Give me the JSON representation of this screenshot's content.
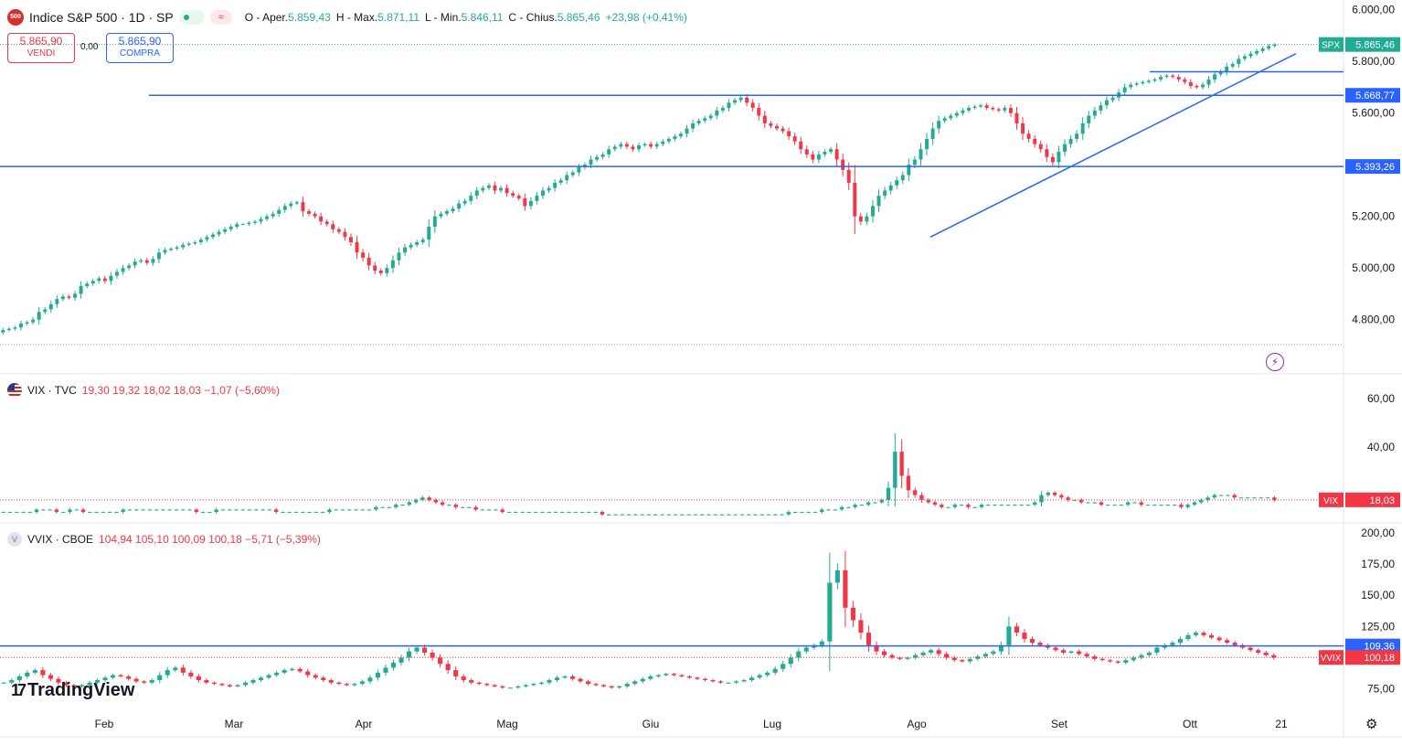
{
  "main": {
    "symbol_logo": "500",
    "title": "Indice S&P 500 · 1D · SP",
    "ohlc": {
      "o_label": "O",
      "o_prefix": "Aper.",
      "o": "5.859,43",
      "h_label": "H",
      "h_prefix": "Max.",
      "h": "5.871,11",
      "l_label": "L",
      "l_prefix": "Min.",
      "l": "5.846,11",
      "c_label": "C",
      "c_prefix": "Chius.",
      "c": "5.865,46",
      "chg": "+23,98 (+0,41%)"
    },
    "sell_price": "5.865,90",
    "sell_label": "VENDI",
    "spread": "0,00",
    "buy_price": "5.865,90",
    "buy_label": "COMPRA"
  },
  "vix": {
    "title": "VIX · TVC",
    "values": "19,30  19,32  18,02  18,03  −1,07 (−5,60%)"
  },
  "vvix": {
    "logo": "V",
    "title": "VVIX · CBOE",
    "values": "104,94  105,10  100,09  100,18  −5,71 (−5,39%)"
  },
  "branding": "TradingView",
  "colors": {
    "up": "#22ab94",
    "down": "#f23645",
    "line": "#2962ff",
    "text": "#131722"
  },
  "icons": [
    "tradingview-logo-icon",
    "settings-gear-icon",
    "lightning-icon",
    "us-flag-icon"
  ],
  "chart_data": [
    {
      "type": "candlestick",
      "name": "SPX",
      "x_ticks": [
        "Feb",
        "Mar",
        "Apr",
        "Mag",
        "Giu",
        "Lug",
        "Ago",
        "Set",
        "Ott",
        "21"
      ],
      "y_ticks": [
        "6.000,00",
        "5.800,00",
        "5.600,00",
        "5.200,00",
        "5.000,00",
        "4.800,00"
      ],
      "ylim": [
        4700,
        6020
      ],
      "last_price_tag": {
        "symbol": "SPX",
        "value": "5.865,46"
      },
      "horizontal_lines": [
        {
          "value": 5668.77,
          "label": "5.668,77"
        },
        {
          "value": 5393.26,
          "label": "5.393,26"
        },
        {
          "value": 5760
        }
      ],
      "trendline": [
        {
          "date": "2024-08-05",
          "value": 5120
        },
        {
          "date": "2024-10-18",
          "value": 5830
        }
      ],
      "closes": [
        4760,
        4765,
        4770,
        4785,
        4790,
        4800,
        4830,
        4840,
        4860,
        4880,
        4890,
        4885,
        4900,
        4930,
        4940,
        4950,
        4960,
        4950,
        4970,
        4985,
        5000,
        5010,
        5025,
        5030,
        5020,
        5035,
        5060,
        5070,
        5075,
        5080,
        5090,
        5095,
        5100,
        5110,
        5120,
        5130,
        5140,
        5150,
        5160,
        5170,
        5170,
        5175,
        5180,
        5190,
        5200,
        5210,
        5225,
        5240,
        5250,
        5255,
        5220,
        5210,
        5200,
        5180,
        5170,
        5150,
        5140,
        5120,
        5100,
        5060,
        5040,
        5010,
        4990,
        4980,
        5000,
        5030,
        5060,
        5080,
        5090,
        5100,
        5110,
        5160,
        5200,
        5210,
        5220,
        5230,
        5250,
        5260,
        5280,
        5300,
        5310,
        5320,
        5300,
        5310,
        5290,
        5280,
        5270,
        5240,
        5260,
        5280,
        5300,
        5310,
        5330,
        5340,
        5360,
        5370,
        5390,
        5400,
        5420,
        5430,
        5440,
        5460,
        5470,
        5480,
        5470,
        5460,
        5475,
        5480,
        5470,
        5480,
        5490,
        5500,
        5510,
        5520,
        5540,
        5560,
        5570,
        5580,
        5590,
        5610,
        5620,
        5640,
        5650,
        5660,
        5640,
        5620,
        5590,
        5560,
        5550,
        5540,
        5530,
        5510,
        5490,
        5460,
        5440,
        5420,
        5440,
        5450,
        5460,
        5420,
        5380,
        5330,
        5200,
        5180,
        5200,
        5240,
        5280,
        5300,
        5320,
        5340,
        5360,
        5400,
        5420,
        5460,
        5500,
        5540,
        5570,
        5580,
        5590,
        5600,
        5610,
        5620,
        5625,
        5630,
        5620,
        5615,
        5610,
        5620,
        5600,
        5560,
        5520,
        5500,
        5480,
        5460,
        5430,
        5410,
        5450,
        5480,
        5500,
        5520,
        5560,
        5590,
        5610,
        5630,
        5650,
        5660,
        5680,
        5700,
        5710,
        5715,
        5720,
        5725,
        5730,
        5740,
        5745,
        5740,
        5730,
        5720,
        5705,
        5700,
        5710,
        5730,
        5750,
        5760,
        5780,
        5790,
        5810,
        5820,
        5830,
        5840,
        5850,
        5860,
        5865
      ]
    },
    {
      "type": "candlestick",
      "name": "VIX",
      "y_ticks": [
        "60,00",
        "40,00"
      ],
      "ylim": [
        10,
        68
      ],
      "last_price_tag": {
        "symbol": "VIX",
        "value": "18,03"
      },
      "closes": [
        13,
        13,
        13,
        13,
        13,
        14,
        14,
        14,
        13,
        13,
        14,
        14,
        13,
        13,
        13,
        13,
        13,
        13,
        14,
        14,
        14,
        14,
        14,
        14,
        14,
        14,
        14,
        14,
        14,
        13,
        13,
        13,
        14,
        14,
        14,
        14,
        14,
        14,
        14,
        14,
        14,
        13,
        13,
        13,
        13,
        13,
        13,
        13,
        13,
        14,
        14,
        14,
        14,
        14,
        14,
        14,
        15,
        15,
        15,
        16,
        16,
        17,
        18,
        19,
        18,
        17,
        16,
        16,
        15,
        15,
        15,
        14,
        14,
        14,
        14,
        13,
        13,
        13,
        13,
        13,
        13,
        13,
        13,
        13,
        13,
        13,
        13,
        13,
        13,
        13,
        12,
        12,
        12,
        12,
        12,
        12,
        12,
        12,
        12,
        12,
        12,
        12,
        12,
        12,
        12,
        12,
        12,
        12,
        12,
        12,
        12,
        12,
        12,
        12,
        12,
        12,
        12,
        12,
        13,
        13,
        13,
        13,
        13,
        14,
        14,
        14,
        15,
        15,
        16,
        16,
        17,
        17,
        18,
        23,
        38,
        28,
        22,
        20,
        18,
        17,
        16,
        15,
        15,
        16,
        16,
        15,
        15,
        16,
        16,
        16,
        16,
        16,
        16,
        16,
        16,
        17,
        20,
        21,
        20,
        19,
        18,
        18,
        17,
        17,
        17,
        16,
        16,
        16,
        16,
        17,
        17,
        16,
        16,
        16,
        16,
        16,
        16,
        15,
        16,
        17,
        18,
        19,
        20,
        20,
        20,
        19,
        19,
        19,
        19,
        19,
        19,
        18
      ]
    },
    {
      "type": "candlestick",
      "name": "VVIX",
      "y_ticks": [
        "200,00",
        "175,00",
        "150,00",
        "125,00",
        "100,00",
        "75,00"
      ],
      "ylim": [
        63,
        205
      ],
      "last_price_tag": {
        "symbol": "VVIX",
        "value": "100,18"
      },
      "horizontal_lines": [
        {
          "value": 109.36,
          "label": "109,36"
        }
      ],
      "closes": [
        80,
        82,
        85,
        88,
        90,
        86,
        83,
        80,
        78,
        77,
        78,
        80,
        82,
        84,
        86,
        85,
        83,
        81,
        80,
        82,
        86,
        90,
        92,
        88,
        85,
        82,
        80,
        79,
        78,
        77,
        78,
        80,
        82,
        84,
        86,
        88,
        90,
        91,
        89,
        86,
        84,
        82,
        80,
        79,
        78,
        79,
        81,
        84,
        88,
        92,
        96,
        100,
        105,
        108,
        104,
        100,
        95,
        90,
        85,
        82,
        80,
        79,
        78,
        77,
        76,
        76,
        77,
        78,
        79,
        80,
        82,
        84,
        85,
        83,
        81,
        79,
        78,
        77,
        76,
        77,
        79,
        81,
        83,
        85,
        86,
        87,
        86,
        85,
        84,
        83,
        82,
        81,
        80,
        80,
        81,
        82,
        84,
        86,
        88,
        91,
        95,
        100,
        105,
        108,
        110,
        113,
        160,
        170,
        140,
        130,
        120,
        110,
        105,
        102,
        100,
        99,
        100,
        102,
        104,
        106,
        103,
        100,
        98,
        97,
        99,
        101,
        103,
        105,
        110,
        125,
        120,
        115,
        112,
        110,
        108,
        106,
        104,
        105,
        103,
        101,
        99,
        98,
        97,
        96,
        98,
        100,
        102,
        104,
        108,
        110,
        112,
        115,
        118,
        120,
        118,
        116,
        114,
        112,
        110,
        108,
        106,
        104,
        102,
        100
      ]
    }
  ]
}
